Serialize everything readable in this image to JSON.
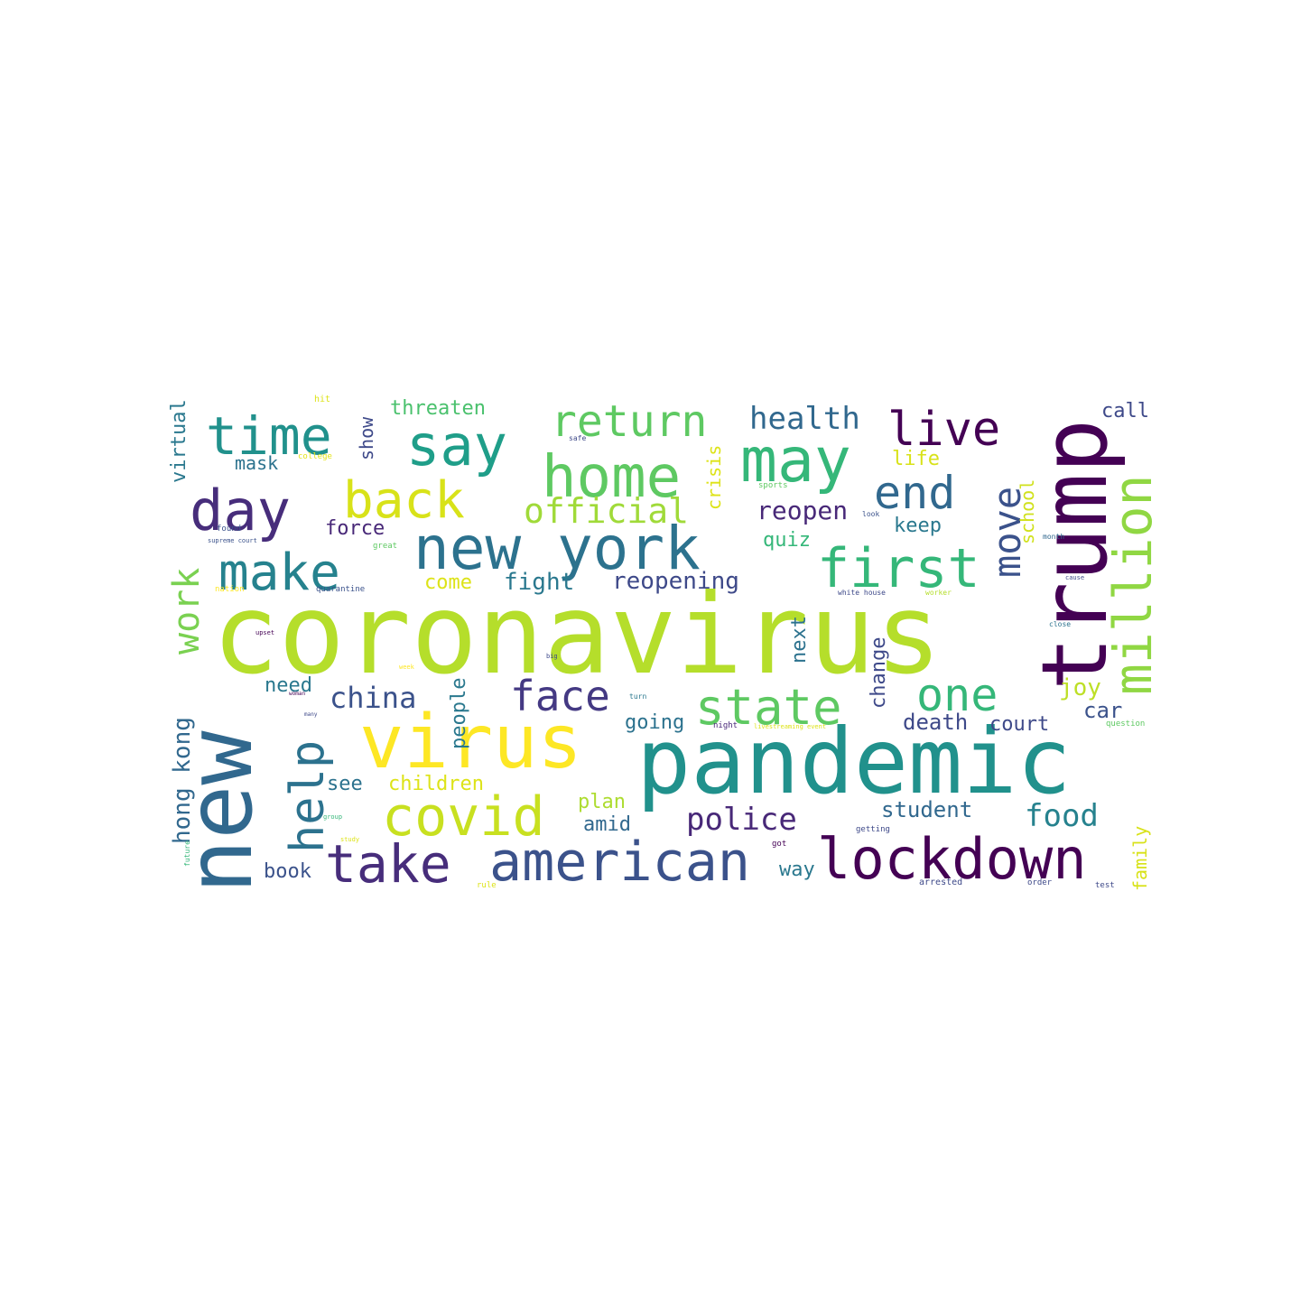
{
  "word_cloud": {
    "background": "#ffffff",
    "words": [
      {
        "text": "coronavirus",
        "color": "#b5de2b"
      },
      {
        "text": "pandemic",
        "color": "#21918c"
      },
      {
        "text": "new",
        "color": "#31688e"
      },
      {
        "text": "trump",
        "color": "#440154"
      },
      {
        "text": "virus",
        "color": "#fde725"
      },
      {
        "text": "new york",
        "color": "#2c728e"
      },
      {
        "text": "lockdown",
        "color": "#440154"
      },
      {
        "text": "american",
        "color": "#3b528b"
      },
      {
        "text": "take",
        "color": "#472d7b"
      },
      {
        "text": "covid",
        "color": "#c8e020"
      },
      {
        "text": "home",
        "color": "#5ec962"
      },
      {
        "text": "may",
        "color": "#35b779"
      },
      {
        "text": "say",
        "color": "#1f9e89"
      },
      {
        "text": "day",
        "color": "#472d7b"
      },
      {
        "text": "time",
        "color": "#21918c"
      },
      {
        "text": "back",
        "color": "#d8e219"
      },
      {
        "text": "make",
        "color": "#26828e"
      },
      {
        "text": "first",
        "color": "#35b779"
      },
      {
        "text": "state",
        "color": "#5ec962"
      },
      {
        "text": "one",
        "color": "#35b779"
      },
      {
        "text": "million",
        "color": "#90d743"
      },
      {
        "text": "help",
        "color": "#2c728e"
      },
      {
        "text": "live",
        "color": "#440154"
      },
      {
        "text": "end",
        "color": "#31688e"
      },
      {
        "text": "return",
        "color": "#5ec962"
      },
      {
        "text": "face",
        "color": "#443983"
      },
      {
        "text": "work",
        "color": "#7ad151"
      },
      {
        "text": "move",
        "color": "#3b528b"
      },
      {
        "text": "official",
        "color": "#a0da39"
      },
      {
        "text": "health",
        "color": "#31688e"
      },
      {
        "text": "china",
        "color": "#3b528b"
      },
      {
        "text": "police",
        "color": "#482878"
      },
      {
        "text": "food",
        "color": "#26828e"
      },
      {
        "text": "reopen",
        "color": "#482878"
      },
      {
        "text": "student",
        "color": "#31688e"
      },
      {
        "text": "death",
        "color": "#3e4989"
      },
      {
        "text": "reopening",
        "color": "#3e4989"
      },
      {
        "text": "fight",
        "color": "#2a788e"
      },
      {
        "text": "threaten",
        "color": "#4ac16d"
      },
      {
        "text": "hong kong",
        "color": "#31688e"
      },
      {
        "text": "virtual",
        "color": "#2a788e"
      },
      {
        "text": "need",
        "color": "#2a788e"
      },
      {
        "text": "see",
        "color": "#2c728e"
      },
      {
        "text": "children",
        "color": "#dde318"
      },
      {
        "text": "plan",
        "color": "#addc30"
      },
      {
        "text": "amid",
        "color": "#31688e"
      },
      {
        "text": "book",
        "color": "#3b528b"
      },
      {
        "text": "way",
        "color": "#2a788e"
      },
      {
        "text": "people",
        "color": "#2a788e"
      },
      {
        "text": "next",
        "color": "#2c728e"
      },
      {
        "text": "change",
        "color": "#3e4989"
      },
      {
        "text": "joy",
        "color": "#bddf26"
      },
      {
        "text": "car",
        "color": "#3b528b"
      },
      {
        "text": "court",
        "color": "#3e4989"
      },
      {
        "text": "going",
        "color": "#2c728e"
      },
      {
        "text": "keep",
        "color": "#2a788e"
      },
      {
        "text": "quiz",
        "color": "#35b779"
      },
      {
        "text": "come",
        "color": "#dde318"
      },
      {
        "text": "force",
        "color": "#482878"
      },
      {
        "text": "mask",
        "color": "#2c728e"
      },
      {
        "text": "show",
        "color": "#3e4989"
      },
      {
        "text": "crisis",
        "color": "#dde318"
      },
      {
        "text": "life",
        "color": "#d8e219"
      },
      {
        "text": "school",
        "color": "#d0e11c"
      },
      {
        "text": "call",
        "color": "#3e4989"
      },
      {
        "text": "family",
        "color": "#d8e219"
      },
      {
        "text": "hit",
        "color": "#dde318"
      },
      {
        "text": "college",
        "color": "#e5e419"
      },
      {
        "text": "found",
        "color": "#3b528b"
      },
      {
        "text": "supreme court",
        "color": "#3b528b"
      },
      {
        "text": "great",
        "color": "#5ec962"
      },
      {
        "text": "nation",
        "color": "#fde725"
      },
      {
        "text": "quarantine",
        "color": "#3b528b"
      },
      {
        "text": "sports",
        "color": "#5ec962"
      },
      {
        "text": "safe",
        "color": "#3e4989"
      },
      {
        "text": "look",
        "color": "#3b528b"
      },
      {
        "text": "month",
        "color": "#31688e"
      },
      {
        "text": "white house",
        "color": "#3e4989"
      },
      {
        "text": "worker",
        "color": "#b5de2b"
      },
      {
        "text": "cause",
        "color": "#3e4989"
      },
      {
        "text": "close",
        "color": "#2c728e"
      },
      {
        "text": "week",
        "color": "#fde725"
      },
      {
        "text": "turn",
        "color": "#2a788e"
      },
      {
        "text": "night",
        "color": "#482878"
      },
      {
        "text": "livestreaming event",
        "color": "#dde318"
      },
      {
        "text": "question",
        "color": "#5ec962"
      },
      {
        "text": "group",
        "color": "#35b779"
      },
      {
        "text": "study",
        "color": "#dde318"
      },
      {
        "text": "getting",
        "color": "#3e4989"
      },
      {
        "text": "got",
        "color": "#440154"
      },
      {
        "text": "arrested",
        "color": "#3e4989"
      },
      {
        "text": "order",
        "color": "#3e4989"
      },
      {
        "text": "test",
        "color": "#3e4989"
      },
      {
        "text": "rule",
        "color": "#dde318"
      },
      {
        "text": "future",
        "color": "#35b779"
      },
      {
        "text": "many",
        "color": "#3e4989"
      },
      {
        "text": "woman",
        "color": "#440154"
      },
      {
        "text": "big",
        "color": "#3e4989"
      },
      {
        "text": "upset",
        "color": "#440154"
      }
    ]
  }
}
